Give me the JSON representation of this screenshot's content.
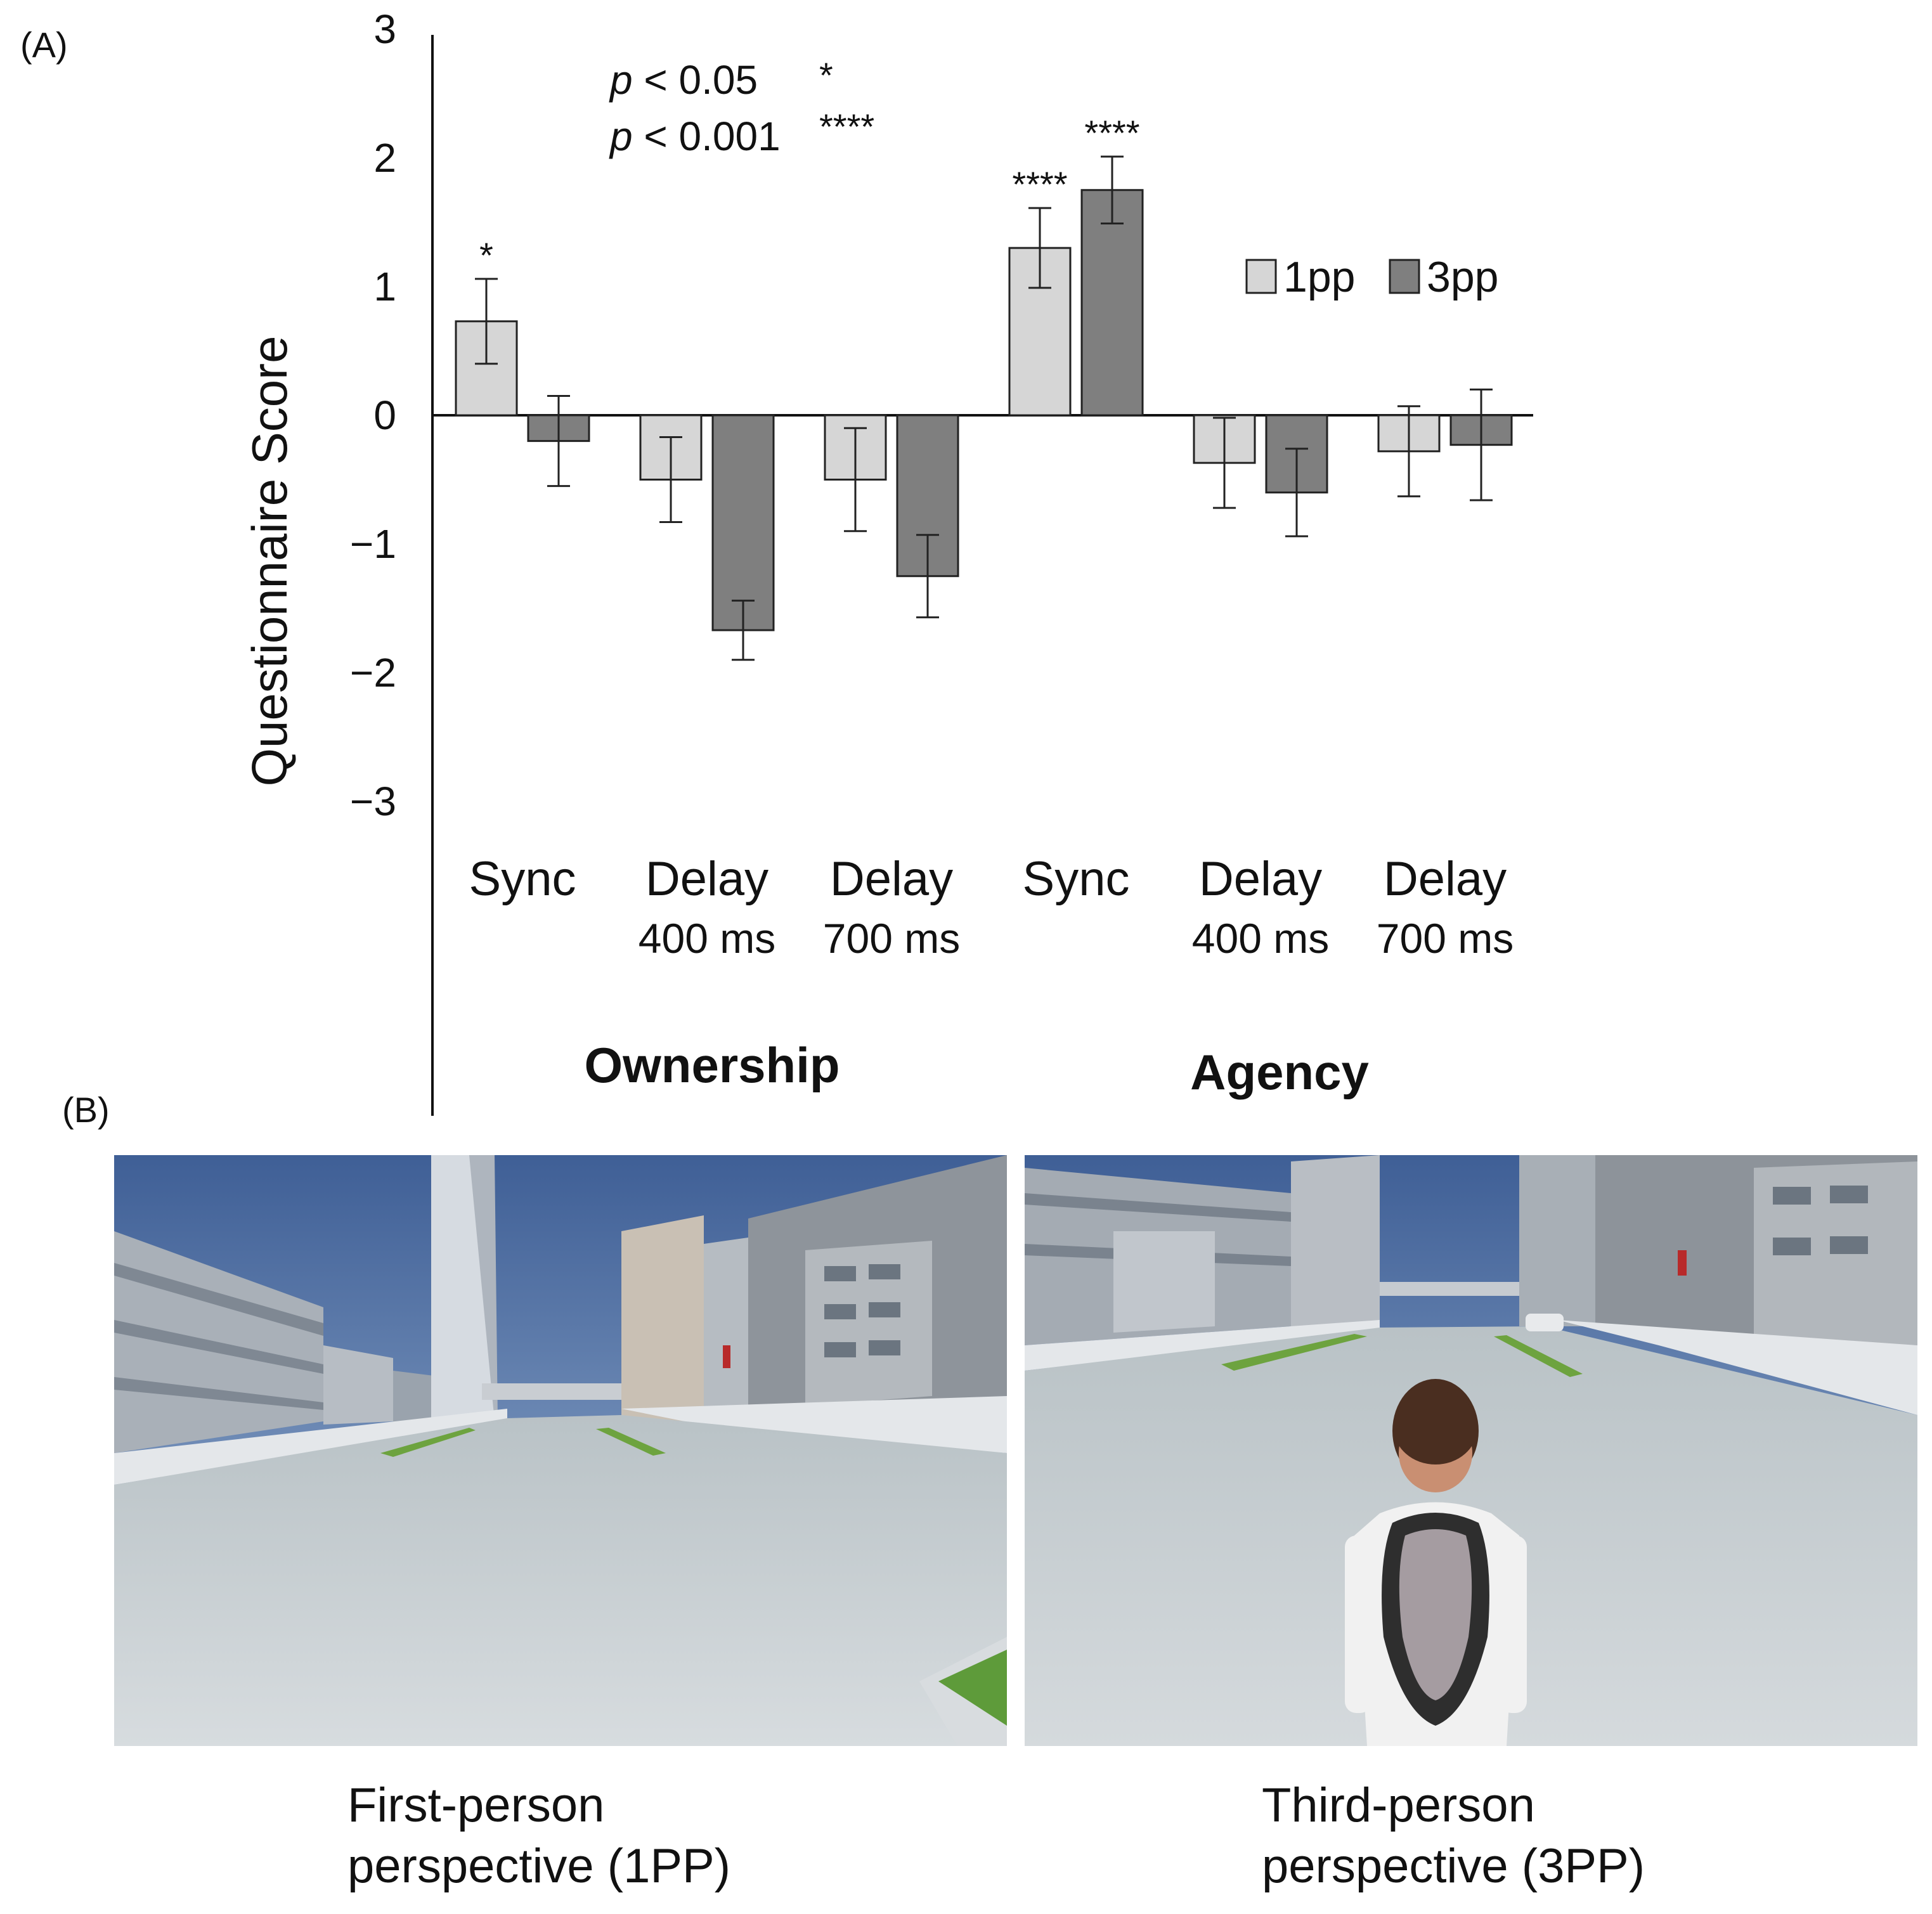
{
  "panel_a_label": "(A)",
  "panel_b_label": "(B)",
  "chart_data": {
    "type": "bar",
    "ylabel": "Questionnaire Score",
    "ylim": [
      -3,
      3
    ],
    "yticks": [
      3,
      2,
      1,
      0,
      -1,
      -2,
      -3
    ],
    "ytick_labels": [
      "3",
      "2",
      "1",
      "0",
      "−1",
      "−2",
      "−3"
    ],
    "grid": false,
    "legend_position": "top-right",
    "categories": [
      {
        "line1": "Sync",
        "line2": ""
      },
      {
        "line1": "Delay",
        "line2": "400 ms"
      },
      {
        "line1": "Delay",
        "line2": "700 ms"
      },
      {
        "line1": "Sync",
        "line2": ""
      },
      {
        "line1": "Delay",
        "line2": "400 ms"
      },
      {
        "line1": "Delay",
        "line2": "700 ms"
      }
    ],
    "groups": [
      {
        "label": "Ownership",
        "categories": [
          0,
          1,
          2
        ]
      },
      {
        "label": "Agency",
        "categories": [
          3,
          4,
          5
        ]
      }
    ],
    "series": [
      {
        "name": "1pp",
        "color": "#d6d6d6",
        "values": [
          0.73,
          -0.5,
          -0.5,
          1.3,
          -0.37,
          -0.28
        ],
        "errors": [
          0.33,
          0.33,
          0.4,
          0.31,
          0.35,
          0.35
        ],
        "sig": [
          "*",
          "",
          "",
          "****",
          "",
          ""
        ]
      },
      {
        "name": "3pp",
        "color": "#7f7f7f",
        "values": [
          -0.2,
          -1.67,
          -1.25,
          1.75,
          -0.6,
          -0.23
        ],
        "errors": [
          0.35,
          0.23,
          0.32,
          0.26,
          0.34,
          0.43
        ],
        "sig": [
          "",
          "",
          "",
          "****",
          "",
          ""
        ]
      }
    ],
    "annotations": [
      {
        "p": "p",
        "text": " < 0.05",
        "stars": "*"
      },
      {
        "p": "p",
        "text": " < 0.001",
        "stars": "****"
      }
    ]
  },
  "images": [
    {
      "caption_line1": "First-person",
      "caption_line2": "perspective (1PP)"
    },
    {
      "caption_line1": "Third-person",
      "caption_line2": "perspective (3PP)"
    }
  ]
}
